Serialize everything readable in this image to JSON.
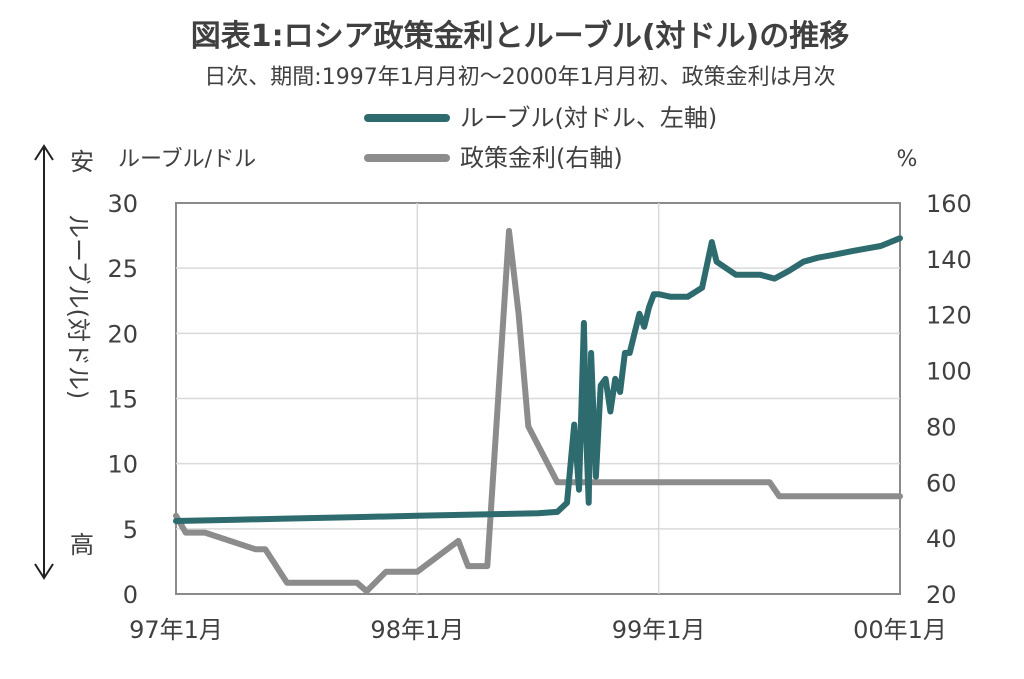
{
  "chart_data": {
    "type": "line",
    "title": "図表1:ロシア政策金利とルーブル(対ドル)の推移",
    "subtitle": "日次、期間:1997年1月月初〜2000年1月月初、政策金利は月次",
    "x_tick_labels": [
      "97年1月",
      "98年1月",
      "99年1月",
      "00年1月"
    ],
    "x_ticks": [
      1997.0,
      1998.0,
      1999.0,
      2000.0
    ],
    "xlim": [
      1997.0,
      2000.0
    ],
    "y_left": {
      "label_top": "ルーブル/ドル",
      "side_label": "ルーブル(対ドル)",
      "top_note": "安",
      "bottom_note": "高",
      "ylim": [
        0,
        30
      ],
      "ticks": [
        0,
        5,
        10,
        15,
        20,
        25,
        30
      ]
    },
    "y_right": {
      "label_top": "%",
      "ylim": [
        20,
        160
      ],
      "ticks": [
        20,
        40,
        60,
        80,
        100,
        120,
        140,
        160
      ]
    },
    "grid": true,
    "legend_position": "top-center",
    "series": [
      {
        "name": "ルーブル(対ドル、左軸)",
        "axis": "left",
        "color": "#2e6b6e",
        "points": [
          [
            1997.0,
            5.6
          ],
          [
            1997.25,
            5.7
          ],
          [
            1997.5,
            5.8
          ],
          [
            1997.75,
            5.9
          ],
          [
            1998.0,
            6.0
          ],
          [
            1998.25,
            6.1
          ],
          [
            1998.5,
            6.2
          ],
          [
            1998.58,
            6.3
          ],
          [
            1998.62,
            7.0
          ],
          [
            1998.65,
            13.0
          ],
          [
            1998.67,
            8.0
          ],
          [
            1998.69,
            20.8
          ],
          [
            1998.7,
            12.0
          ],
          [
            1998.71,
            7.0
          ],
          [
            1998.72,
            18.5
          ],
          [
            1998.74,
            9.0
          ],
          [
            1998.76,
            16.0
          ],
          [
            1998.78,
            16.5
          ],
          [
            1998.8,
            14.0
          ],
          [
            1998.82,
            16.5
          ],
          [
            1998.84,
            15.5
          ],
          [
            1998.86,
            18.5
          ],
          [
            1998.88,
            18.5
          ],
          [
            1998.9,
            20.0
          ],
          [
            1998.92,
            21.5
          ],
          [
            1998.94,
            20.5
          ],
          [
            1998.96,
            22.0
          ],
          [
            1998.98,
            23.0
          ],
          [
            1999.0,
            23.0
          ],
          [
            1999.05,
            22.8
          ],
          [
            1999.12,
            22.8
          ],
          [
            1999.18,
            23.5
          ],
          [
            1999.22,
            27.0
          ],
          [
            1999.24,
            25.5
          ],
          [
            1999.28,
            25.0
          ],
          [
            1999.32,
            24.5
          ],
          [
            1999.36,
            24.5
          ],
          [
            1999.42,
            24.5
          ],
          [
            1999.48,
            24.2
          ],
          [
            1999.54,
            24.8
          ],
          [
            1999.6,
            25.5
          ],
          [
            1999.66,
            25.8
          ],
          [
            1999.72,
            26.0
          ],
          [
            1999.8,
            26.3
          ],
          [
            1999.86,
            26.5
          ],
          [
            1999.92,
            26.7
          ],
          [
            1999.96,
            27.0
          ],
          [
            2000.0,
            27.3
          ]
        ]
      },
      {
        "name": "政策金利(右軸)",
        "axis": "right",
        "color": "#8c8c8c",
        "points": [
          [
            1997.0,
            48
          ],
          [
            1997.04,
            42
          ],
          [
            1997.12,
            42
          ],
          [
            1997.33,
            36
          ],
          [
            1997.37,
            36
          ],
          [
            1997.46,
            24
          ],
          [
            1997.75,
            24
          ],
          [
            1997.79,
            21
          ],
          [
            1997.87,
            28
          ],
          [
            1998.0,
            28
          ],
          [
            1998.17,
            39
          ],
          [
            1998.21,
            30
          ],
          [
            1998.29,
            30
          ],
          [
            1998.38,
            150
          ],
          [
            1998.42,
            120
          ],
          [
            1998.46,
            80
          ],
          [
            1998.58,
            60
          ],
          [
            1999.0,
            60
          ],
          [
            1999.37,
            60
          ],
          [
            1999.46,
            60
          ],
          [
            1999.5,
            55
          ],
          [
            2000.0,
            55
          ]
        ]
      }
    ]
  }
}
